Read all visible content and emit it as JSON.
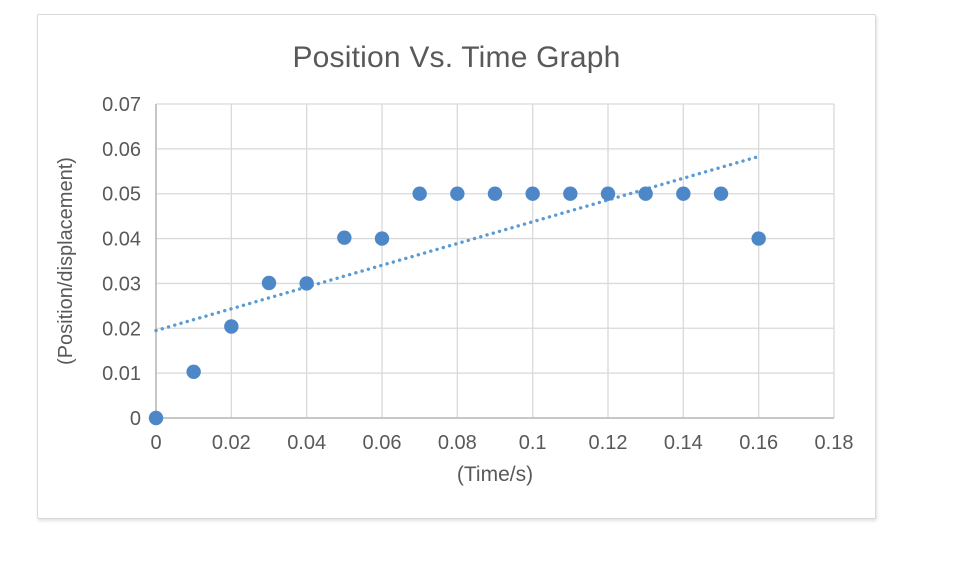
{
  "page": {
    "background_color": "#ffffff"
  },
  "chart_data": {
    "type": "scatter",
    "title": "Position Vs. Time Graph",
    "xlabel": "(Time/s)",
    "ylabel": "(Position/displacement)",
    "x": [
      0,
      0.01,
      0.02,
      0.03,
      0.04,
      0.05,
      0.06,
      0.07,
      0.08,
      0.09,
      0.1,
      0.11,
      0.12,
      0.13,
      0.14,
      0.15,
      0.16
    ],
    "y": [
      0,
      0.0103,
      0.0204,
      0.0301,
      0.03,
      0.0402,
      0.04,
      0.05,
      0.05,
      0.05,
      0.05,
      0.05,
      0.05,
      0.05,
      0.05,
      0.05,
      0.04
    ],
    "xlim": [
      0,
      0.18
    ],
    "ylim": [
      0,
      0.07
    ],
    "xticks": [
      0,
      0.02,
      0.04,
      0.06,
      0.08,
      0.1,
      0.12,
      0.14,
      0.16,
      0.18
    ],
    "yticks": [
      0,
      0.01,
      0.02,
      0.03,
      0.04,
      0.05,
      0.06,
      0.07
    ],
    "grid": true,
    "legend": false,
    "trendline": {
      "type": "linear",
      "style": "dotted",
      "x_start": 0,
      "y_start": 0.0195,
      "x_end": 0.16,
      "y_end": 0.0583
    },
    "colors": {
      "marker": "#4E87C8",
      "trendline": "#5B9BD5",
      "gridline": "#D9D9D9",
      "axis_line": "#BFBFBF",
      "text": "#595959",
      "chart_border": "#D9D9D9"
    }
  }
}
